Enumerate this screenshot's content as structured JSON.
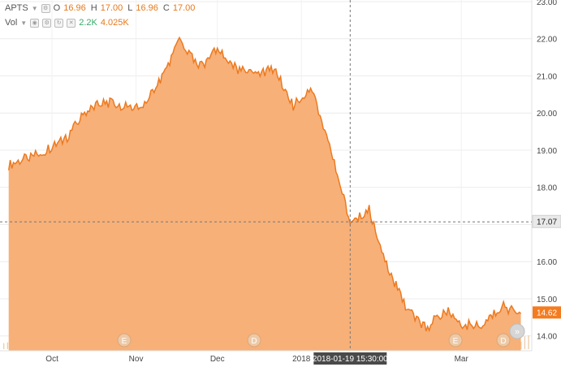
{
  "legend": {
    "symbol": "APTS",
    "open_key": "O",
    "open": "16.96",
    "high_key": "H",
    "high": "17.00",
    "low_key": "L",
    "low": "16.96",
    "close_key": "C",
    "close": "17.00",
    "vol_label": "Vol",
    "vol_a": "2.2K",
    "vol_b": "4.025K"
  },
  "crosshair": {
    "time_label": "2018-01-19 15:30:00",
    "price_label": "17.07"
  },
  "last_price": "14.62",
  "markers": [
    "E",
    "D",
    "E",
    "D"
  ],
  "nav_icon": "double-chevron-right-icon",
  "colors": {
    "area_fill": "#f7b078",
    "area_line": "#ec7a20",
    "volume": "#e9c79f",
    "accent": "#e8781a",
    "last_tag": "#f47c20"
  },
  "chart_data": {
    "type": "area",
    "title": "",
    "xlabel": "",
    "ylabel": "",
    "x_ticks": [
      "Oct",
      "Nov",
      "Dec",
      "2018",
      "Mar"
    ],
    "y_ticks": [
      "14.00",
      "15.00",
      "16.00",
      "17.00",
      "18.00",
      "19.00",
      "20.00",
      "21.00",
      "22.00",
      "23.00"
    ],
    "ylim": [
      13.6,
      23.0
    ],
    "x": [
      "2017-09-15",
      "2017-09-22",
      "2017-09-29",
      "2017-10-06",
      "2017-10-13",
      "2017-10-20",
      "2017-10-27",
      "2017-11-03",
      "2017-11-10",
      "2017-11-14",
      "2017-11-17",
      "2017-11-24",
      "2017-12-01",
      "2017-12-08",
      "2017-12-15",
      "2017-12-22",
      "2017-12-29",
      "2018-01-05",
      "2018-01-12",
      "2018-01-19",
      "2018-01-26",
      "2018-02-02",
      "2018-02-09",
      "2018-02-16",
      "2018-02-23",
      "2018-03-02",
      "2018-03-09",
      "2018-03-16",
      "2018-03-23"
    ],
    "series": [
      {
        "values": [
          18.6,
          18.8,
          19.0,
          19.3,
          20.0,
          20.3,
          20.2,
          20.1,
          20.9,
          21.5,
          22.0,
          21.2,
          21.7,
          21.2,
          21.0,
          21.2,
          20.2,
          20.6,
          19.0,
          17.0,
          17.4,
          15.8,
          14.7,
          14.2,
          14.7,
          14.3,
          14.3,
          14.8,
          14.6
        ]
      }
    ],
    "volume": [
      0.2,
      0.35,
      0.15,
      0.25,
      0.4,
      0.3,
      0.2,
      0.45,
      0.3,
      0.5,
      0.6,
      0.35,
      0.3,
      0.25,
      0.4,
      0.2,
      0.9,
      0.3,
      0.25,
      0.2,
      0.35,
      0.6,
      0.4,
      0.3,
      0.25,
      0.45,
      0.3,
      0.2,
      0.35
    ],
    "grid": true,
    "legend": "none"
  }
}
